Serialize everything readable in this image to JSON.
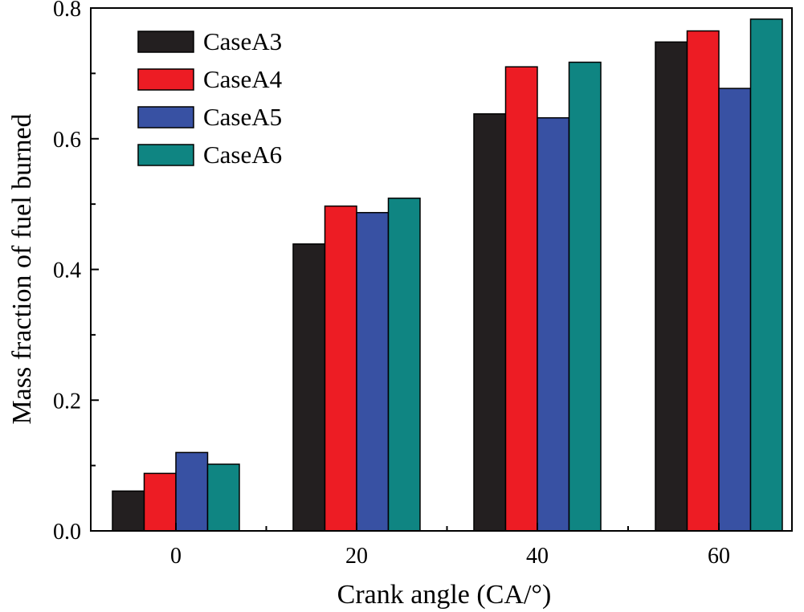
{
  "chart_data": {
    "type": "bar",
    "title": "",
    "xlabel": "Crank angle (CA/°)",
    "ylabel": "Mass fraction of fuel burned",
    "categories": [
      "0",
      "20",
      "40",
      "60"
    ],
    "ylim": [
      0,
      0.8
    ],
    "yticks": [
      0.0,
      0.2,
      0.4,
      0.6,
      0.8
    ],
    "ytick_labels": [
      "0.0",
      "0.2",
      "0.4",
      "0.6",
      "0.8"
    ],
    "grid": false,
    "legend_position": "top-left",
    "series": [
      {
        "name": "CaseA3",
        "color": "#231f20",
        "values": [
          0.061,
          0.439,
          0.638,
          0.748
        ]
      },
      {
        "name": "CaseA4",
        "color": "#ed1c24",
        "values": [
          0.088,
          0.497,
          0.71,
          0.765
        ]
      },
      {
        "name": "CaseA5",
        "color": "#3851a3",
        "values": [
          0.12,
          0.487,
          0.632,
          0.677
        ]
      },
      {
        "name": "CaseA6",
        "color": "#0f8582",
        "values": [
          0.102,
          0.509,
          0.717,
          0.783
        ]
      }
    ]
  }
}
